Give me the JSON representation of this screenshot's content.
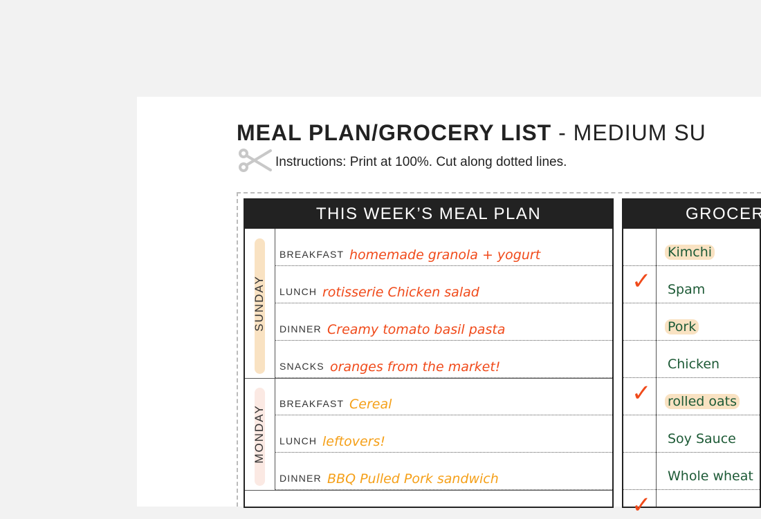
{
  "title_bold": "MEAL PLAN/GROCERY LIST",
  "title_rest": " - MEDIUM SU",
  "instructions": "Instructions: Print at 100%. Cut along dotted lines.",
  "meal_plan": {
    "header": "THIS WEEK’S MEAL PLAN",
    "days": [
      {
        "name": "SUNDAY",
        "pill_color": "#f9e2c2",
        "ink": "#f04a1a",
        "meals": [
          {
            "label": "BREAKFAST",
            "value": "homemade granola + yogurt"
          },
          {
            "label": "LUNCH",
            "value": "rotisserie Chicken salad"
          },
          {
            "label": "DINNER",
            "value": "Creamy tomato basil pasta"
          },
          {
            "label": "SNACKS",
            "value": "oranges from the market!"
          }
        ]
      },
      {
        "name": "MONDAY",
        "pill_color": "#fbe9e3",
        "ink": "#f5a019",
        "meals": [
          {
            "label": "BREAKFAST",
            "value": "Cereal"
          },
          {
            "label": "LUNCH",
            "value": "leftovers!"
          },
          {
            "label": "DINNER",
            "value": "BBQ Pulled Pork sandwich"
          }
        ]
      }
    ]
  },
  "grocery": {
    "header": "GROCER",
    "items": [
      {
        "name": "Kimchi",
        "checked": false,
        "highlight": true
      },
      {
        "name": "Spam",
        "checked": true,
        "highlight": false
      },
      {
        "name": "Pork",
        "checked": false,
        "highlight": true
      },
      {
        "name": "Chicken",
        "checked": false,
        "highlight": false
      },
      {
        "name": "rolled oats",
        "checked": true,
        "highlight": true
      },
      {
        "name": "Soy Sauce",
        "checked": false,
        "highlight": false
      },
      {
        "name": "Whole wheat",
        "checked": false,
        "highlight": false
      },
      {
        "name": "",
        "checked": true,
        "highlight": false
      }
    ]
  },
  "colors": {
    "highlight": "#f9e2c2",
    "grocery_ink": "#1d5a36",
    "check": "#f04a1a"
  }
}
